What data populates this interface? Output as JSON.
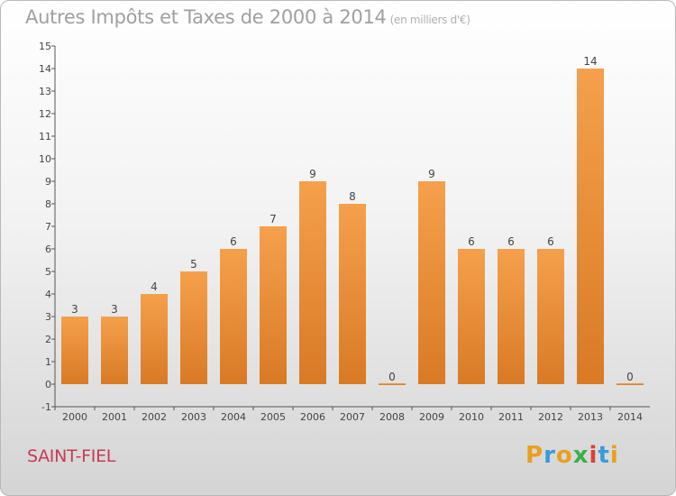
{
  "chart_data": {
    "type": "bar",
    "title": "Autres Impôts et Taxes de 2000 à 2014",
    "subtitle": "(en milliers d'€)",
    "categories": [
      "2000",
      "2001",
      "2002",
      "2003",
      "2004",
      "2005",
      "2006",
      "2007",
      "2008",
      "2009",
      "2010",
      "2011",
      "2012",
      "2013",
      "2014"
    ],
    "values": [
      3,
      3,
      4,
      5,
      6,
      7,
      9,
      8,
      0,
      9,
      6,
      6,
      6,
      14,
      0
    ],
    "ylim": [
      -1,
      15
    ],
    "yticks": [
      -1,
      0,
      1,
      2,
      3,
      4,
      5,
      6,
      7,
      8,
      9,
      10,
      11,
      12,
      13,
      14,
      15
    ],
    "grid": false,
    "legend": "none",
    "bar_color": "#f5a04c",
    "bar_color_dark": "#d97a25"
  },
  "footer": {
    "commune": "SAINT-FIEL",
    "logo": [
      "P",
      "r",
      "o",
      "x",
      "i",
      "t",
      "i"
    ],
    "logo_colors": [
      "#e8a020",
      "#3a9ad9",
      "#e8a020",
      "#3ab04a",
      "#d94040",
      "#3a9ad9",
      "#e8a020"
    ]
  }
}
